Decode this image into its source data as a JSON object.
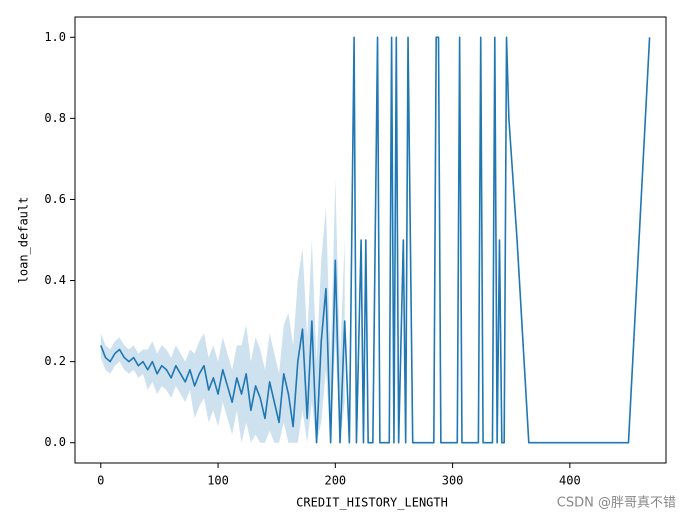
{
  "chart_data": {
    "type": "line",
    "xlabel": "CREDIT_HISTORY_LENGTH",
    "ylabel": "loan_default",
    "watermark": "CSDN @胖哥真不错",
    "xlim": [
      -22,
      482
    ],
    "ylim": [
      -0.05,
      1.05
    ],
    "xticks": [
      0,
      100,
      200,
      300,
      400
    ],
    "yticks": [
      {
        "value": 0,
        "label": "0.0"
      },
      {
        "value": 0.2,
        "label": "0.2"
      },
      {
        "value": 0.4,
        "label": "0.4"
      },
      {
        "value": 0.6,
        "label": "0.6"
      },
      {
        "value": 0.8,
        "label": "0.8"
      },
      {
        "value": 1,
        "label": "1.0"
      }
    ],
    "color": "#1f77b4",
    "x": [
      0,
      4,
      8,
      12,
      16,
      20,
      24,
      28,
      32,
      36,
      40,
      44,
      48,
      52,
      56,
      60,
      64,
      68,
      72,
      76,
      80,
      84,
      88,
      92,
      96,
      100,
      104,
      108,
      112,
      116,
      120,
      124,
      128,
      132,
      136,
      140,
      144,
      148,
      152,
      156,
      160,
      164,
      168,
      172,
      176,
      180,
      184,
      188,
      192,
      196,
      200,
      204,
      208,
      212,
      216,
      218,
      222,
      224,
      226,
      228,
      232,
      236,
      238,
      246,
      248,
      250,
      252,
      254,
      258,
      260,
      262,
      264,
      266,
      270,
      284,
      286,
      288,
      290,
      304,
      306,
      308,
      322,
      324,
      326,
      334,
      336,
      338,
      340,
      342,
      344,
      346,
      348,
      355,
      365,
      450,
      468
    ],
    "values": [
      0.24,
      0.21,
      0.2,
      0.22,
      0.23,
      0.21,
      0.2,
      0.21,
      0.19,
      0.2,
      0.18,
      0.2,
      0.17,
      0.19,
      0.18,
      0.16,
      0.19,
      0.17,
      0.15,
      0.18,
      0.14,
      0.17,
      0.19,
      0.13,
      0.16,
      0.12,
      0.18,
      0.14,
      0.1,
      0.16,
      0.12,
      0.17,
      0.08,
      0.14,
      0.11,
      0.06,
      0.15,
      0.1,
      0.05,
      0.17,
      0.12,
      0.04,
      0.2,
      0.28,
      0.06,
      0.3,
      0,
      0.25,
      0.38,
      0,
      0.45,
      0,
      0.3,
      0,
      1,
      0,
      0.5,
      0,
      0.5,
      0,
      0,
      1,
      0,
      0,
      1,
      0,
      1,
      0,
      0.5,
      0,
      1,
      0.5,
      0,
      0,
      0,
      1,
      1,
      0,
      0,
      1,
      0,
      0,
      1,
      0,
      0,
      1,
      0,
      0.5,
      0,
      0,
      1,
      0.8,
      0.5,
      0,
      0,
      1
    ],
    "ci_lower": [
      0.21,
      0.18,
      0.17,
      0.19,
      0.2,
      0.18,
      0.17,
      0.18,
      0.16,
      0.17,
      0.13,
      0.15,
      0.12,
      0.14,
      0.13,
      0.11,
      0.14,
      0.12,
      0.1,
      0.13,
      0.06,
      0.09,
      0.11,
      0.05,
      0.08,
      0.04,
      0.1,
      0.06,
      0.02,
      0.08,
      0,
      0.05,
      0,
      0.02,
      0,
      0,
      0.03,
      0,
      0,
      0.05,
      0,
      0,
      0,
      0.08,
      0,
      0.1,
      0,
      0.05,
      0.18,
      0,
      0.25,
      0,
      0.1,
      null,
      null,
      null,
      null,
      null,
      null,
      null,
      null,
      null,
      null,
      null,
      null,
      null,
      null,
      null,
      null,
      null,
      null,
      null,
      null,
      null,
      null,
      null,
      null,
      null,
      null,
      null,
      null,
      null,
      null,
      null,
      null,
      null,
      null,
      null,
      null,
      null,
      null,
      null,
      null,
      null,
      null,
      null
    ],
    "ci_upper": [
      0.27,
      0.24,
      0.23,
      0.25,
      0.26,
      0.24,
      0.23,
      0.24,
      0.22,
      0.23,
      0.23,
      0.25,
      0.22,
      0.24,
      0.23,
      0.21,
      0.24,
      0.22,
      0.2,
      0.23,
      0.22,
      0.25,
      0.27,
      0.21,
      0.24,
      0.2,
      0.26,
      0.22,
      0.18,
      0.24,
      0.24,
      0.29,
      0.2,
      0.26,
      0.23,
      0.18,
      0.27,
      0.22,
      0.17,
      0.29,
      0.32,
      0.24,
      0.4,
      0.48,
      0.26,
      0.5,
      0.2,
      0.45,
      0.58,
      0.2,
      0.65,
      0.2,
      0.5,
      null,
      null,
      null,
      null,
      null,
      null,
      null,
      null,
      null,
      null,
      null,
      null,
      null,
      null,
      null,
      null,
      null,
      null,
      null,
      null,
      null,
      null,
      null,
      null,
      null,
      null,
      null,
      null,
      null,
      null,
      null,
      null,
      null,
      null,
      null,
      null,
      null,
      null,
      null,
      null,
      null,
      null,
      null
    ]
  }
}
